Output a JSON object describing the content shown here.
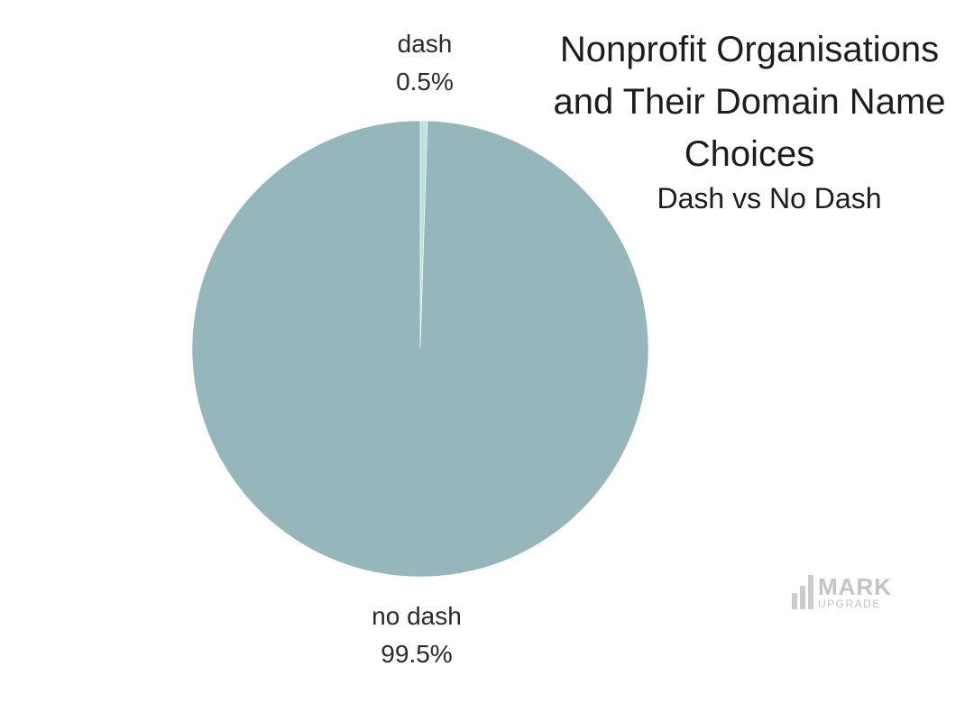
{
  "chart_data": {
    "type": "pie",
    "title": "Nonprofit Organisations and Their Domain Name Choices",
    "title_lines": [
      "Nonprofit Organisations",
      "and Their Domain Name",
      "Choices"
    ],
    "subtitle": "Dash vs No Dash",
    "slices": [
      {
        "label": "dash",
        "value": 0.5,
        "value_label": "0.5%",
        "color": "#b9e2d9"
      },
      {
        "label": "no dash",
        "value": 99.5,
        "value_label": "99.5%",
        "color": "#95b6bb"
      }
    ],
    "start_angle_deg": 0,
    "direction": "clockwise"
  },
  "watermark": {
    "main": "MARK",
    "sub": "UPGRADE",
    "icon": "bar-chart-logo-icon"
  }
}
